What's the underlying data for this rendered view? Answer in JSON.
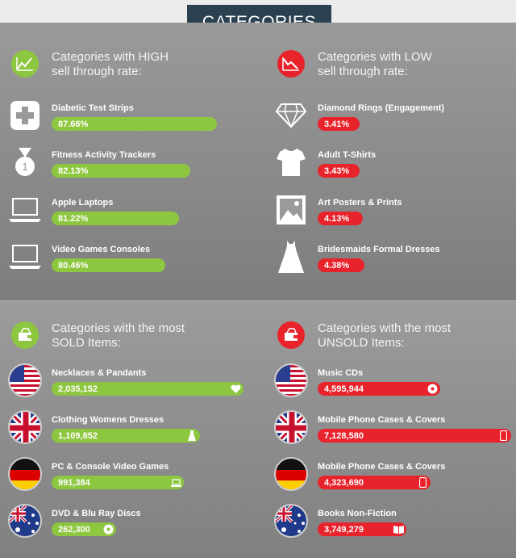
{
  "title": "CATEGORIES",
  "colors": {
    "green": "#8dc63f",
    "red": "#e8232b",
    "title_bg": "#2b4150"
  },
  "high": {
    "heading_line1": "Categories with HIGH",
    "heading_line2": "sell through rate:",
    "icon": "trend-up-chart-icon",
    "items": [
      {
        "label": "Diabetic Test Strips",
        "value": "87.66%",
        "icon": "medical-cross-icon"
      },
      {
        "label": "Fitness Activity Trackers",
        "value": "82.13%",
        "icon": "medal-icon"
      },
      {
        "label": "Apple Laptops",
        "value": "81.22%",
        "icon": "laptop-icon"
      },
      {
        "label": "Video Games Consoles",
        "value": "80.46%",
        "icon": "laptop-icon"
      }
    ]
  },
  "low": {
    "heading_line1": "Categories with LOW",
    "heading_line2": "sell through rate:",
    "icon": "trend-down-chart-icon",
    "items": [
      {
        "label": "Diamond Rings (Engagement)",
        "value": "3.41%",
        "icon": "diamond-icon"
      },
      {
        "label": "Adult T-Shirts",
        "value": "3.43%",
        "icon": "tshirt-icon"
      },
      {
        "label": "Art Posters & Prints",
        "value": "4.13%",
        "icon": "picture-icon"
      },
      {
        "label": "Bridesmaids Formal Dresses",
        "value": "4.38%",
        "icon": "dress-icon"
      }
    ]
  },
  "sold": {
    "heading_line1": "Categories with the most",
    "heading_line2": "SOLD Items:",
    "icon": "wallet-icon",
    "items": [
      {
        "label": "Necklaces & Pandants",
        "value": "2,035,152",
        "flag": "usa-flag",
        "end_icon": "heart-icon"
      },
      {
        "label": "Clothing Womens Dresses",
        "value": "1,109,852",
        "flag": "uk-flag",
        "end_icon": "dress-icon"
      },
      {
        "label": "PC & Console Video Games",
        "value": "991,384",
        "flag": "germany-flag",
        "end_icon": "laptop-icon"
      },
      {
        "label": "DVD & Blu Ray Discs",
        "value": "262,300",
        "flag": "australia-flag",
        "end_icon": "disc-icon"
      }
    ]
  },
  "unsold": {
    "heading_line1": "Categories with the most",
    "heading_line2": "UNSOLD Items:",
    "icon": "wallet-icon",
    "items": [
      {
        "label": "Music CDs",
        "value": "4,595,944",
        "flag": "usa-flag",
        "end_icon": "disc-icon"
      },
      {
        "label": "Mobile Phone Cases & Covers",
        "value": "7,128,580",
        "flag": "uk-flag",
        "end_icon": "phone-icon"
      },
      {
        "label": "Mobile Phone Cases & Covers",
        "value": "4,323,690",
        "flag": "germany-flag",
        "end_icon": "phone-icon"
      },
      {
        "label": "Books Non-Fiction",
        "value": "3,749,279",
        "flag": "australia-flag",
        "end_icon": "book-icon"
      }
    ]
  }
}
